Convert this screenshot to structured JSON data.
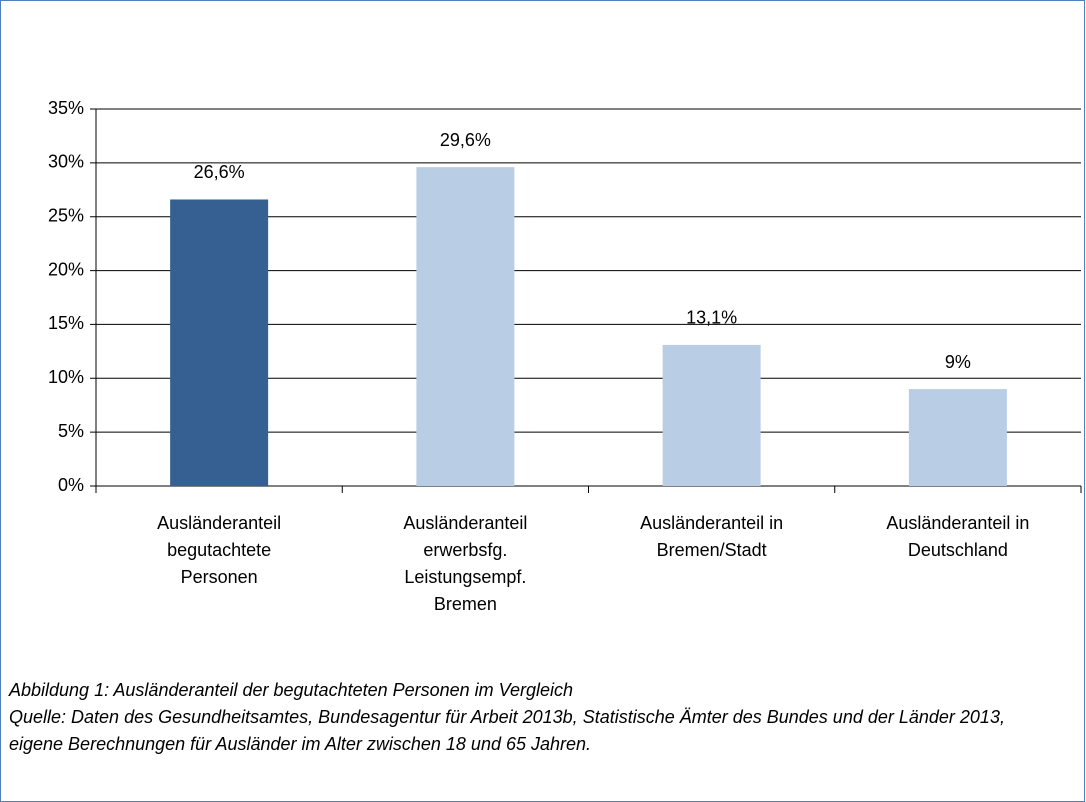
{
  "chart_data": {
    "type": "bar",
    "categories": [
      "Ausländeranteil\nbegutachtete\nPersonen",
      "Ausländeranteil\nerwerbsfg.\nLeistungsempf.\nBremen",
      "Ausländeranteil in\nBremen/Stadt",
      "Ausländeranteil in\nDeutschland"
    ],
    "values": [
      26.6,
      29.6,
      13.1,
      9
    ],
    "value_labels": [
      "26,6%",
      "29,6%",
      "13,1%",
      "9%"
    ],
    "colors": [
      "#376092",
      "#b9cde5",
      "#b9cde5",
      "#b9cde5"
    ],
    "ylim": [
      0,
      35
    ],
    "yticks": [
      {
        "value": 0,
        "label": "0%"
      },
      {
        "value": 5,
        "label": "5%"
      },
      {
        "value": 10,
        "label": "10%"
      },
      {
        "value": 15,
        "label": "15%"
      },
      {
        "value": 20,
        "label": "20%"
      },
      {
        "value": 25,
        "label": "25%"
      },
      {
        "value": 30,
        "label": "30%"
      },
      {
        "value": 35,
        "label": "35%"
      }
    ],
    "grid": true,
    "caption": "Abbildung 1: Ausländeranteil der begutachteten Personen im Vergleich",
    "source": "Quelle: Daten des Gesundheitsamtes, Bundesagentur für Arbeit 2013b, Statistische Ämter des Bundes und der Länder 2013, eigene Berechnungen für Ausländer im Alter zwischen 18 und 65 Jahren."
  }
}
